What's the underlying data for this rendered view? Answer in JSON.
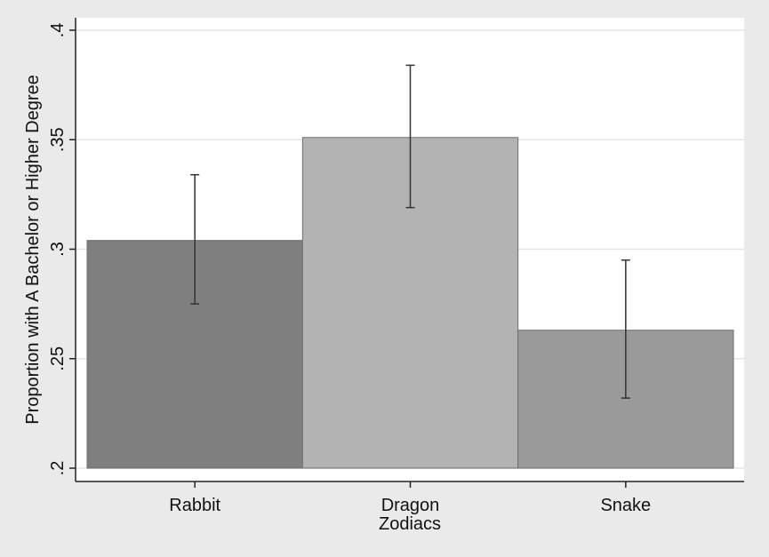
{
  "chart_data": {
    "type": "bar",
    "categories": [
      "Rabbit",
      "Dragon",
      "Snake"
    ],
    "values": [
      0.304,
      0.351,
      0.263
    ],
    "error_bars": {
      "lower": [
        0.275,
        0.319,
        0.232
      ],
      "upper": [
        0.334,
        0.384,
        0.295
      ]
    },
    "bar_colors": [
      "#7f7f7f",
      "#b3b3b3",
      "#9a9a9a"
    ],
    "error_bar_color": "#333333",
    "title": "",
    "xlabel": "Zodiacs",
    "ylabel": "Proportion with A Bachelor or Higher Degree",
    "ylim": [
      0.2,
      0.4
    ],
    "yticks": [
      0.2,
      0.25,
      0.3,
      0.35,
      0.4
    ],
    "ytick_labels": [
      ".2",
      ".25",
      ".3",
      ".35",
      ".4"
    ],
    "grid": true,
    "background": "#ffffff",
    "page_background": "#eaeaea"
  }
}
